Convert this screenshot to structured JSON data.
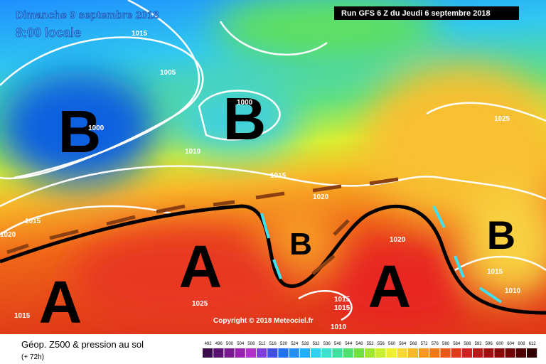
{
  "header": {
    "date": "Dimanche 9 septembre 2018",
    "time": "8:00 locale",
    "run": "Run GFS 6 Z du Jeudi 6 septembre 2018"
  },
  "copyright": "Copyright © 2018 Meteociel.fr",
  "footer": {
    "title": "Géop. Z500 & pression au sol",
    "lead": "(+ 72h)"
  },
  "centres": [
    "B",
    "B",
    "A",
    "A",
    "A",
    "B",
    "B"
  ],
  "isobars": [
    1015,
    1005,
    1000,
    1000,
    1010,
    1015,
    1020,
    1020,
    1025,
    1025,
    1015,
    1015,
    1015,
    1010,
    1015,
    1010,
    1020,
    1015
  ],
  "legend": {
    "values": [
      492,
      496,
      500,
      504,
      508,
      512,
      516,
      520,
      524,
      528,
      532,
      536,
      540,
      544,
      548,
      552,
      556,
      560,
      564,
      568,
      572,
      576,
      580,
      584,
      588,
      592,
      596,
      600,
      604,
      608,
      612
    ],
    "colors": [
      "#3a0a4a",
      "#5a1070",
      "#7a1a90",
      "#9a20b0",
      "#b030c8",
      "#8040d8",
      "#4050e0",
      "#2070f0",
      "#2090ff",
      "#20b0ff",
      "#30d0f0",
      "#40e0d0",
      "#40e0a0",
      "#50e070",
      "#70e040",
      "#a0e830",
      "#c8f030",
      "#f0f030",
      "#f8d830",
      "#f8b828",
      "#f89820",
      "#f07818",
      "#e85818",
      "#e03818",
      "#d02020",
      "#b81818",
      "#a01010",
      "#880808",
      "#700404",
      "#500202",
      "#300000"
    ]
  }
}
